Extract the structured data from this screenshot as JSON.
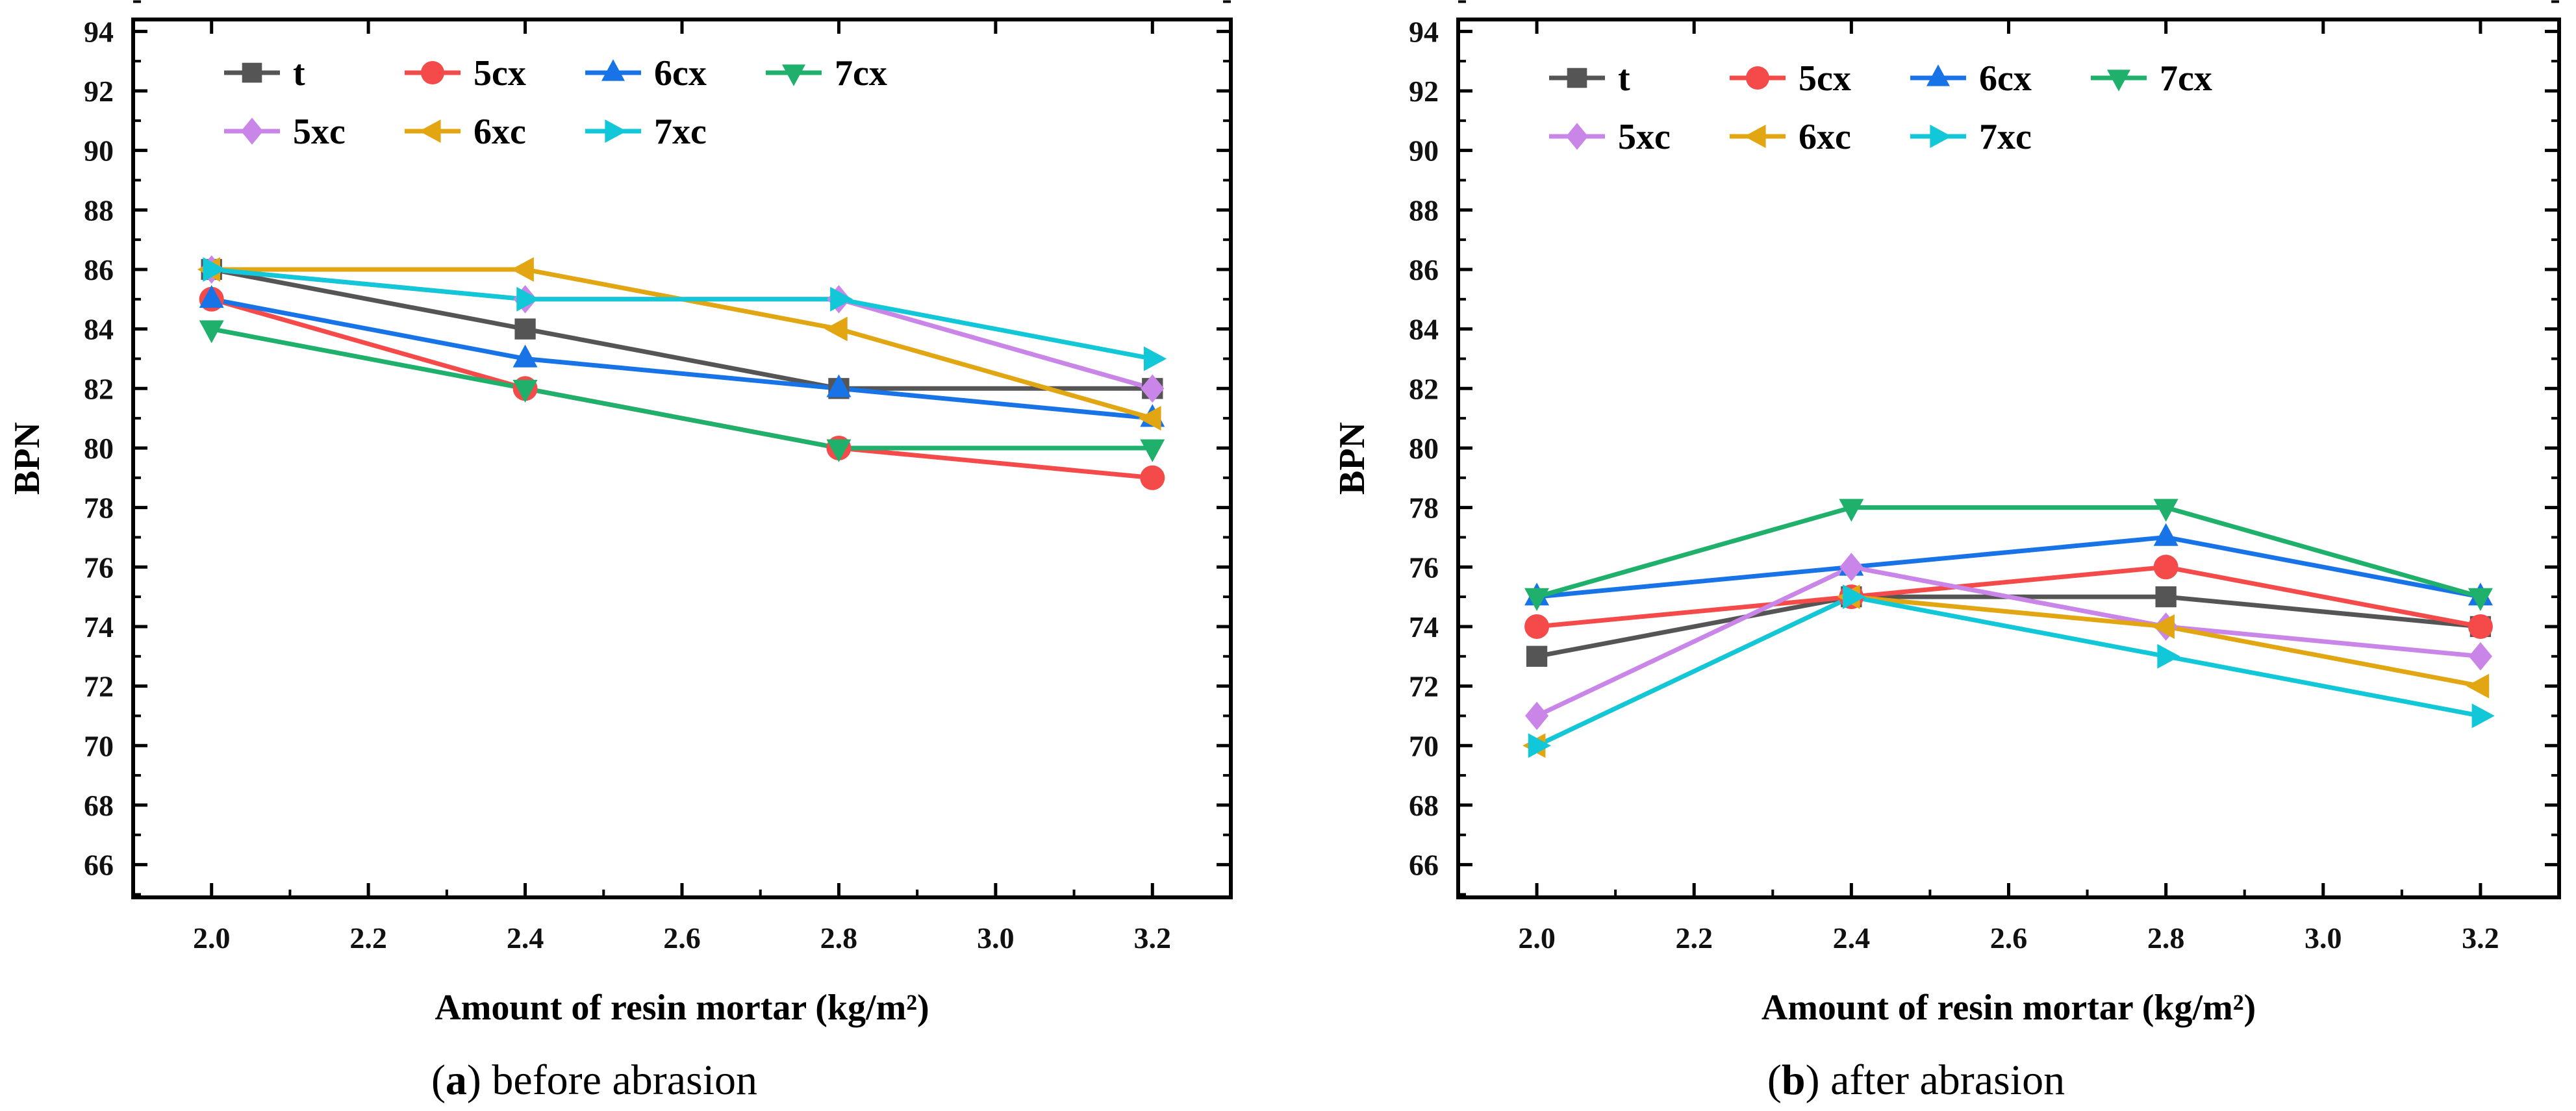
{
  "colors": {
    "t": "#555555",
    "5cx": "#F44A4A",
    "6cx": "#1874E6",
    "7cx": "#1FB06C",
    "5xc": "#C986E8",
    "6xc": "#E3A613",
    "7xc": "#12C8D8"
  },
  "chart_data": [
    {
      "type": "line",
      "panel": "a",
      "caption_letter": "a",
      "caption_text": ") before abrasion",
      "caption_open": "(",
      "xlabel": "Amount of resin mortar (kg/m²)",
      "ylabel": "BPN",
      "x": [
        2.0,
        2.4,
        2.8,
        3.2
      ],
      "xlim": [
        1.9,
        3.3
      ],
      "ylim": [
        64.9,
        94.4
      ],
      "xticks": [
        "2.0",
        "2.2",
        "2.4",
        "2.6",
        "2.8",
        "3.0",
        "3.2"
      ],
      "yticks": [
        "66",
        "68",
        "70",
        "72",
        "74",
        "76",
        "78",
        "80",
        "82",
        "84",
        "86",
        "88",
        "90",
        "92",
        "94"
      ],
      "legend_position": "top-left",
      "series": [
        {
          "name": "t",
          "marker": "square",
          "values": [
            86,
            84,
            82,
            82
          ]
        },
        {
          "name": "5cx",
          "marker": "circle",
          "values": [
            85,
            82,
            80,
            79
          ]
        },
        {
          "name": "6cx",
          "marker": "triangle-up",
          "values": [
            85,
            83,
            82,
            81
          ]
        },
        {
          "name": "7cx",
          "marker": "triangle-down",
          "values": [
            84,
            82,
            80,
            80
          ]
        },
        {
          "name": "5xc",
          "marker": "diamond",
          "values": [
            86,
            85,
            85,
            82
          ]
        },
        {
          "name": "6xc",
          "marker": "triangle-left",
          "values": [
            86,
            86,
            84,
            81
          ]
        },
        {
          "name": "7xc",
          "marker": "triangle-right",
          "values": [
            86,
            85,
            85,
            83
          ]
        }
      ]
    },
    {
      "type": "line",
      "panel": "b",
      "caption_letter": "b",
      "caption_text": ") after abrasion",
      "caption_open": "(",
      "xlabel": "Amount of resin mortar (kg/m²)",
      "ylabel": "BPN",
      "x": [
        2.0,
        2.4,
        2.8,
        3.2
      ],
      "xlim": [
        1.9,
        3.3
      ],
      "ylim": [
        64.9,
        94.4
      ],
      "xticks": [
        "2.0",
        "2.2",
        "2.4",
        "2.6",
        "2.8",
        "3.0",
        "3.2"
      ],
      "yticks": [
        "66",
        "68",
        "70",
        "72",
        "74",
        "76",
        "78",
        "80",
        "82",
        "84",
        "86",
        "88",
        "90",
        "92",
        "94"
      ],
      "legend_position": "top-left",
      "series": [
        {
          "name": "t",
          "marker": "square",
          "values": [
            73,
            75,
            75,
            74
          ]
        },
        {
          "name": "5cx",
          "marker": "circle",
          "values": [
            74,
            75,
            76,
            74
          ]
        },
        {
          "name": "6cx",
          "marker": "triangle-up",
          "values": [
            75,
            76,
            77,
            75
          ]
        },
        {
          "name": "7cx",
          "marker": "triangle-down",
          "values": [
            75,
            78,
            78,
            75
          ]
        },
        {
          "name": "5xc",
          "marker": "diamond",
          "values": [
            71,
            76,
            74,
            73
          ]
        },
        {
          "name": "6xc",
          "marker": "triangle-left",
          "values": [
            70,
            75,
            74,
            72
          ]
        },
        {
          "name": "7xc",
          "marker": "triangle-right",
          "values": [
            70,
            75,
            73,
            71
          ]
        }
      ]
    }
  ]
}
